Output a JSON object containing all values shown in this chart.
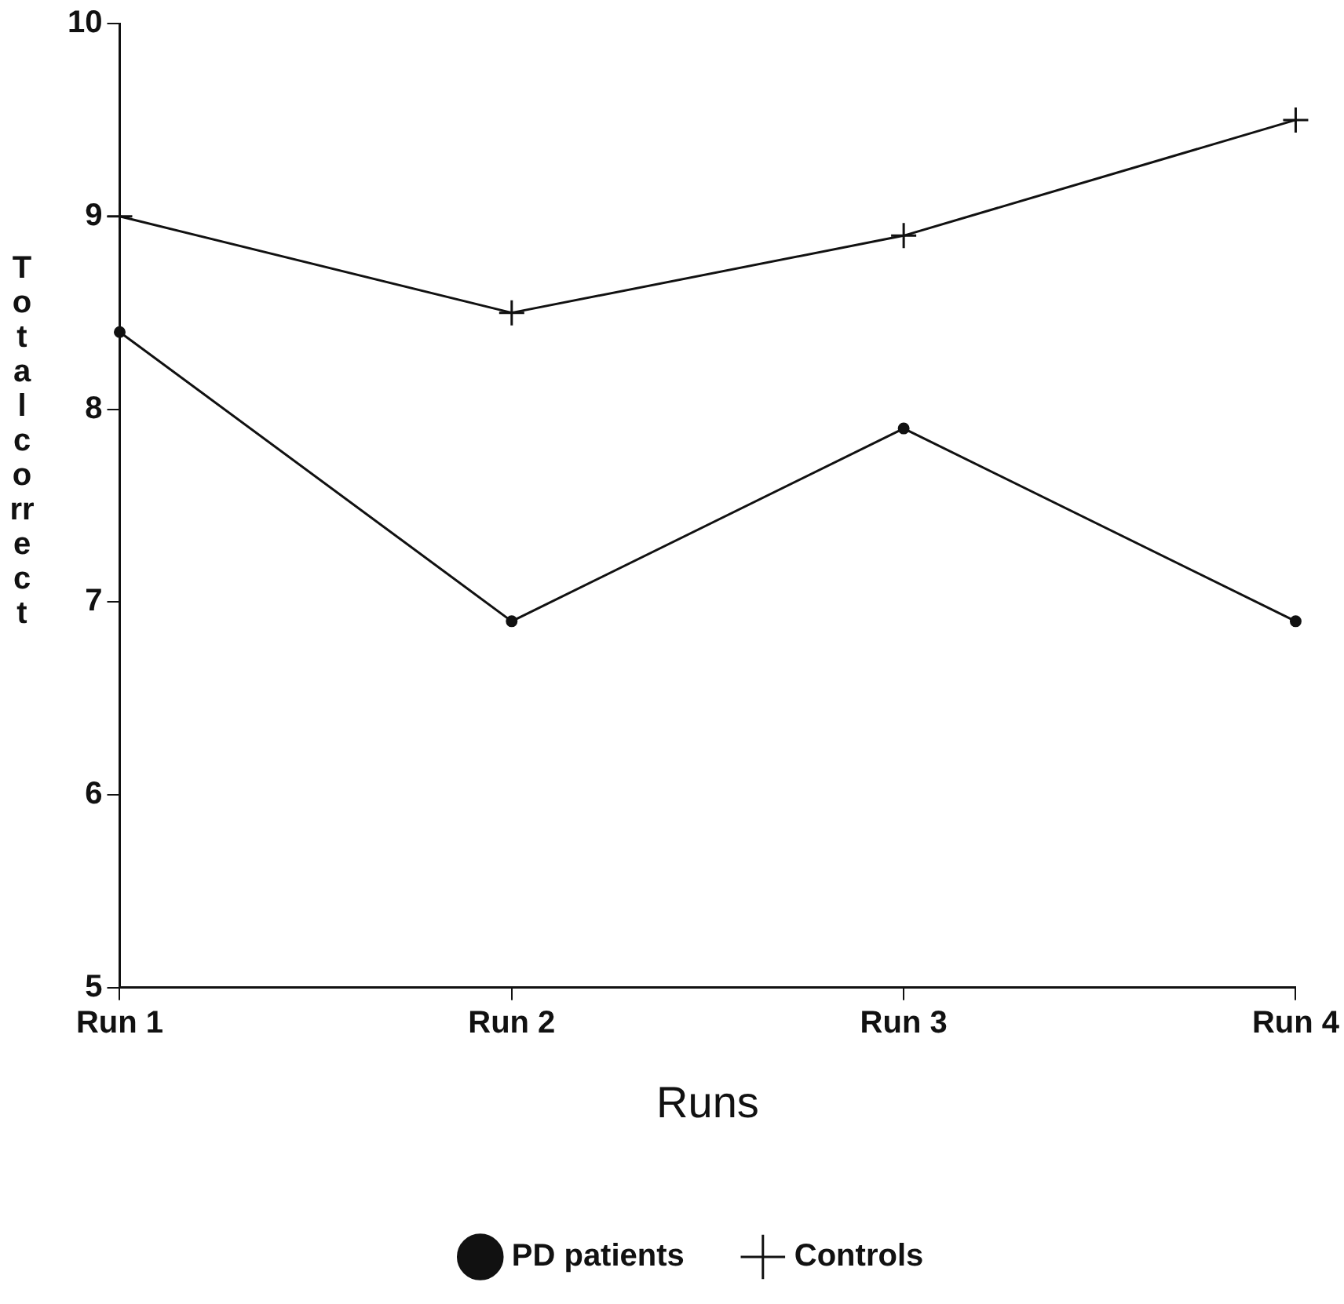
{
  "chart_data": {
    "type": "line",
    "xlabel": "Runs",
    "ylabel": "Total correct",
    "categories": [
      "Run 1",
      "Run 2",
      "Run 3",
      "Run 4"
    ],
    "series": [
      {
        "name": "PD patients",
        "color": "#111111",
        "marker": "circle",
        "values": [
          8.4,
          6.9,
          7.9,
          6.9
        ]
      },
      {
        "name": "Controls",
        "color": "#111111",
        "marker": "cross",
        "values": [
          9.0,
          8.5,
          8.9,
          9.5
        ]
      }
    ],
    "ylim": [
      5,
      10
    ],
    "yticks": [
      5,
      6,
      7,
      8,
      9,
      10
    ],
    "grid": false,
    "legend": "bottom",
    "line_style": "solid"
  }
}
